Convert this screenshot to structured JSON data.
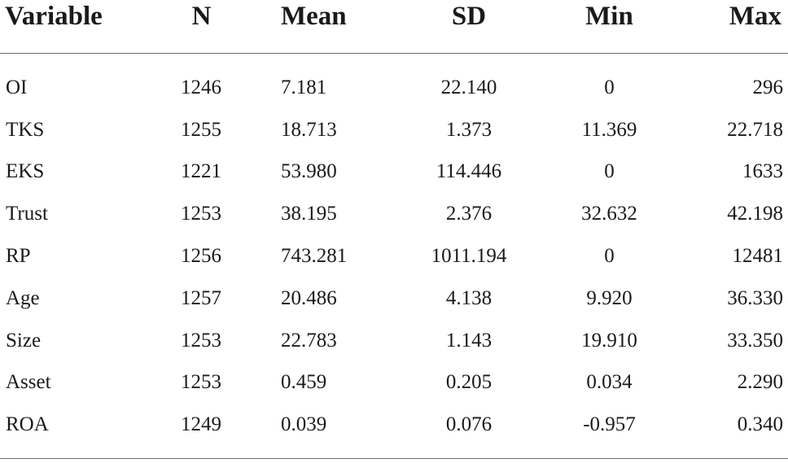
{
  "table": {
    "headers": [
      "Variable",
      "N",
      "Mean",
      "SD",
      "Min",
      "Max"
    ],
    "rows": [
      [
        "OI",
        "1246",
        "7.181",
        "22.140",
        "0",
        "296"
      ],
      [
        "TKS",
        "1255",
        "18.713",
        "1.373",
        "11.369",
        "22.718"
      ],
      [
        "EKS",
        "1221",
        "53.980",
        "114.446",
        "0",
        "1633"
      ],
      [
        "Trust",
        "1253",
        "38.195",
        "2.376",
        "32.632",
        "42.198"
      ],
      [
        "RP",
        "1256",
        "743.281",
        "1011.194",
        "0",
        "12481"
      ],
      [
        "Age",
        "1257",
        "20.486",
        "4.138",
        "9.920",
        "36.330"
      ],
      [
        "Size",
        "1253",
        "22.783",
        "1.143",
        "19.910",
        "33.350"
      ],
      [
        "Asset",
        "1253",
        "0.459",
        "0.205",
        "0.034",
        "2.290"
      ],
      [
        "ROA",
        "1249",
        "0.039",
        "0.076",
        "-0.957",
        "0.340"
      ]
    ]
  }
}
